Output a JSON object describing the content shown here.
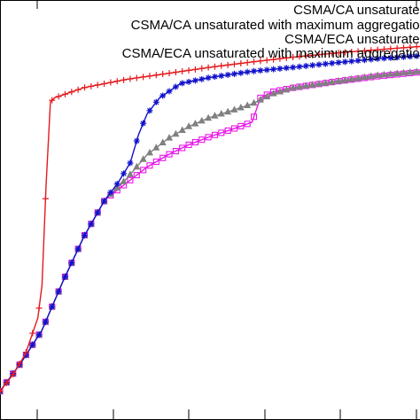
{
  "chart_data": {
    "type": "line",
    "title": "",
    "xlabel": "",
    "ylabel": "",
    "xlim": [
      0,
      100
    ],
    "ylim": [
      0,
      100
    ],
    "grid": false,
    "legend_placement": "top-right",
    "series": [
      {
        "name": "CSMA/CA unsaturated",
        "color": "#e31a1c",
        "marker": "plus",
        "x": [
          0,
          3,
          6,
          9,
          10,
          11,
          12,
          13,
          20,
          30,
          40,
          50,
          60,
          70,
          80,
          90,
          100
        ],
        "y": [
          4,
          8,
          13,
          22,
          30,
          55,
          75,
          76,
          78.5,
          80.5,
          82,
          83.5,
          84.8,
          86,
          87,
          87.8,
          88.6
        ]
      },
      {
        "name": "CSMA/CA unsaturated with maximum aggregation",
        "color": "#1010cc",
        "marker": "star",
        "x": [
          0,
          5,
          10,
          15,
          20,
          25,
          28,
          31,
          33,
          35,
          38,
          43,
          50,
          60,
          70,
          80,
          90,
          100
        ],
        "y": [
          4,
          11,
          19,
          31,
          42,
          51,
          55,
          60,
          67,
          72,
          76,
          79.5,
          81,
          82.5,
          83.5,
          84.6,
          85.6,
          86.3
        ]
      },
      {
        "name": "CSMA/ECA unsaturated",
        "color": "#808080",
        "marker": "triangle",
        "x": [
          0,
          5,
          10,
          15,
          20,
          25,
          30,
          35,
          40,
          45,
          50,
          55,
          60,
          65,
          70,
          80,
          90,
          100
        ],
        "y": [
          4,
          11,
          19,
          31,
          42,
          51,
          56,
          62,
          66,
          69,
          71.2,
          72.8,
          74.5,
          77,
          78.5,
          80,
          81.5,
          82.5
        ]
      },
      {
        "name": "CSMA/ECA unsaturated with maximum aggregation",
        "color": "#e815e8",
        "marker": "square",
        "x": [
          0,
          5,
          10,
          15,
          20,
          25,
          30,
          35,
          40,
          45,
          50,
          55,
          60,
          62,
          65,
          70,
          80,
          90,
          100
        ],
        "y": [
          4,
          11,
          19,
          31,
          42,
          51,
          55,
          59,
          62,
          64.5,
          66.5,
          68.2,
          70,
          76,
          77.5,
          78.5,
          80,
          81.3,
          82.3
        ]
      }
    ]
  }
}
